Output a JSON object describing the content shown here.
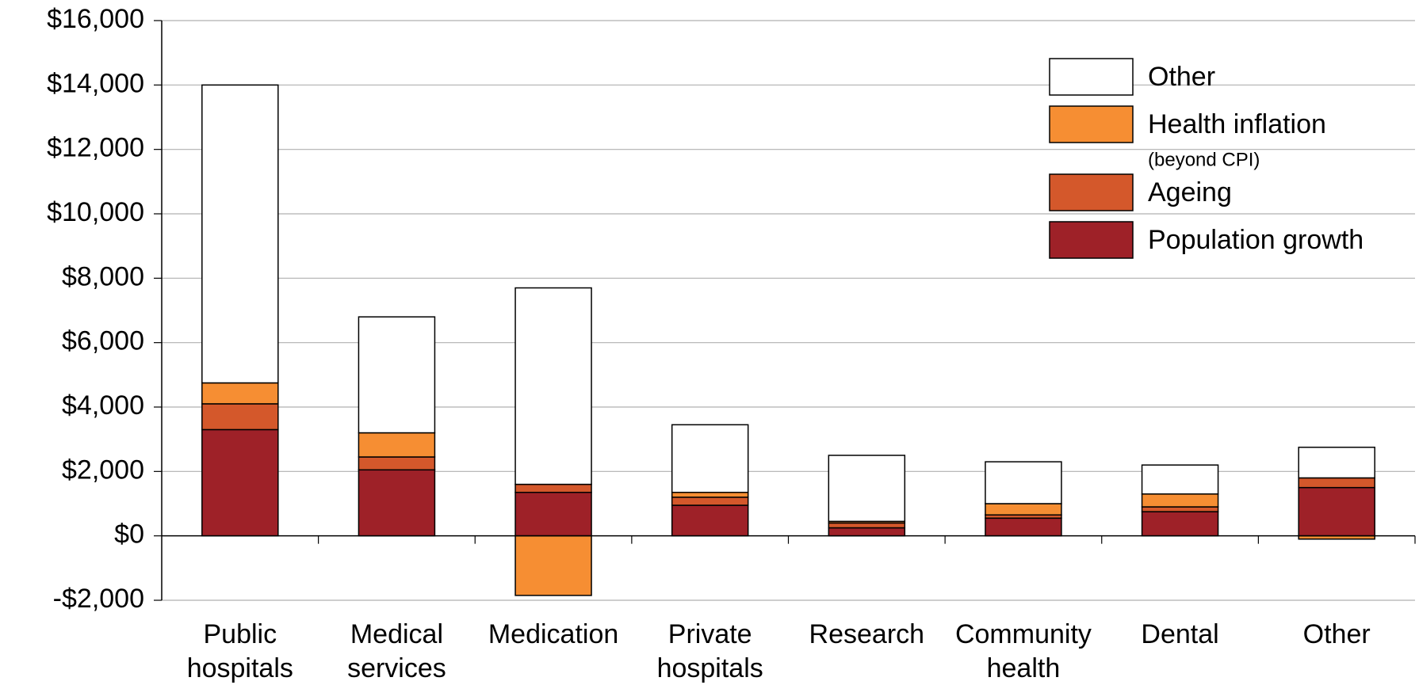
{
  "chart_data": {
    "type": "stacked_bar",
    "categories": [
      [
        "Public",
        "hospitals"
      ],
      [
        "Medical",
        "services"
      ],
      [
        "Medication"
      ],
      [
        "Private",
        "hospitals"
      ],
      [
        "Research"
      ],
      [
        "Community",
        "health"
      ],
      [
        "Dental"
      ],
      [
        "Other"
      ]
    ],
    "series": [
      {
        "name": "Population growth",
        "color": "#9e2128",
        "values": [
          3300,
          2050,
          1350,
          950,
          250,
          550,
          750,
          1500
        ]
      },
      {
        "name": "Ageing",
        "color": "#d4582b",
        "values": [
          800,
          400,
          250,
          250,
          150,
          100,
          150,
          300
        ]
      },
      {
        "name": "Health inflation",
        "name_note": "(beyond CPI)",
        "color": "#f68e33",
        "values": [
          650,
          750,
          -1850,
          150,
          50,
          350,
          400,
          -100
        ]
      },
      {
        "name": "Other",
        "color": "#ffffff",
        "values": [
          9250,
          3600,
          6100,
          2100,
          2050,
          1300,
          900,
          950
        ]
      }
    ],
    "ylim": [
      -2000,
      16000
    ],
    "yticks": [
      {
        "value": -2000,
        "label": "-$2,000"
      },
      {
        "value": 0,
        "label": "$0"
      },
      {
        "value": 2000,
        "label": "$2,000"
      },
      {
        "value": 4000,
        "label": "$4,000"
      },
      {
        "value": 6000,
        "label": "$6,000"
      },
      {
        "value": 8000,
        "label": "$8,000"
      },
      {
        "value": 10000,
        "label": "$10,000"
      },
      {
        "value": 12000,
        "label": "$12,000"
      },
      {
        "value": 14000,
        "label": "$14,000"
      },
      {
        "value": 16000,
        "label": "$16,000"
      }
    ],
    "grid": true,
    "legend": "upper right"
  }
}
